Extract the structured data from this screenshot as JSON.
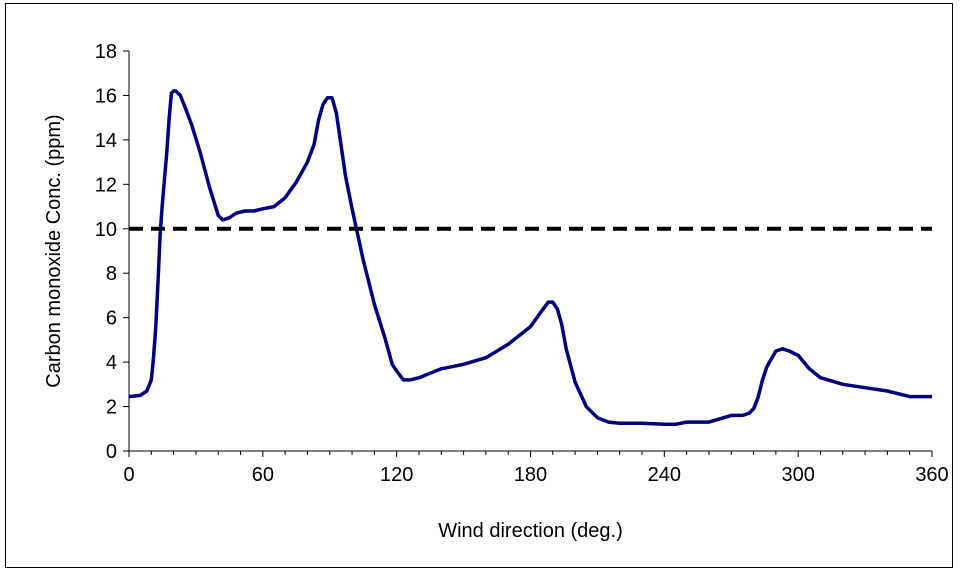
{
  "chart_data": {
    "type": "line",
    "title": "",
    "xlabel": "Wind direction (deg.)",
    "ylabel": "Carbon monoxide Conc. (ppm)",
    "xlim": [
      0,
      360
    ],
    "ylim": [
      0,
      18
    ],
    "xticks": [
      0,
      60,
      120,
      180,
      240,
      300,
      360
    ],
    "yticks": [
      0,
      2,
      4,
      6,
      8,
      10,
      12,
      14,
      16,
      18
    ],
    "xtick_labels": [
      "0",
      "60",
      "120",
      "180",
      "240",
      "300",
      "360"
    ],
    "ytick_labels": [
      "0",
      "2",
      "4",
      "6",
      "8",
      "10",
      "12",
      "14",
      "16",
      "18"
    ],
    "grid": false,
    "legend": "none",
    "series": [
      {
        "color": "#000080",
        "style": "solid",
        "x": [
          0,
          5,
          8,
          10,
          11,
          12,
          13,
          14,
          15,
          17,
          18,
          19,
          20,
          21,
          23,
          25,
          28,
          32,
          36,
          40,
          42,
          45,
          48,
          52,
          56,
          60,
          65,
          70,
          75,
          80,
          83,
          85,
          87,
          89,
          91,
          93,
          95,
          97,
          100,
          105,
          110,
          115,
          118,
          120,
          123,
          126,
          130,
          135,
          140,
          150,
          160,
          170,
          180,
          185,
          188,
          190,
          192,
          194,
          196,
          200,
          205,
          210,
          215,
          220,
          230,
          240,
          245,
          250,
          260,
          270,
          275,
          278,
          280,
          282,
          284,
          286,
          290,
          293,
          296,
          300,
          305,
          310,
          320,
          330,
          340,
          350,
          360
        ],
        "y": [
          2.45,
          2.5,
          2.7,
          3.2,
          4.2,
          5.6,
          7.6,
          9.8,
          11.2,
          13.5,
          15.0,
          16.1,
          16.2,
          16.2,
          16.0,
          15.5,
          14.7,
          13.4,
          11.9,
          10.6,
          10.4,
          10.5,
          10.7,
          10.8,
          10.8,
          10.9,
          11.0,
          11.4,
          12.1,
          13.0,
          13.8,
          14.9,
          15.6,
          15.9,
          15.9,
          15.2,
          13.8,
          12.4,
          10.9,
          8.6,
          6.6,
          5.0,
          3.9,
          3.6,
          3.2,
          3.2,
          3.3,
          3.5,
          3.7,
          3.9,
          4.2,
          4.8,
          5.6,
          6.3,
          6.7,
          6.7,
          6.4,
          5.7,
          4.6,
          3.1,
          2.0,
          1.5,
          1.3,
          1.25,
          1.25,
          1.2,
          1.2,
          1.3,
          1.3,
          1.6,
          1.6,
          1.7,
          1.9,
          2.4,
          3.2,
          3.8,
          4.5,
          4.6,
          4.5,
          4.3,
          3.7,
          3.3,
          3.0,
          2.85,
          2.7,
          2.45,
          2.45
        ]
      },
      {
        "color": "#000000",
        "style": "dashed",
        "x": [
          0,
          360
        ],
        "y": [
          10,
          10
        ]
      }
    ]
  }
}
